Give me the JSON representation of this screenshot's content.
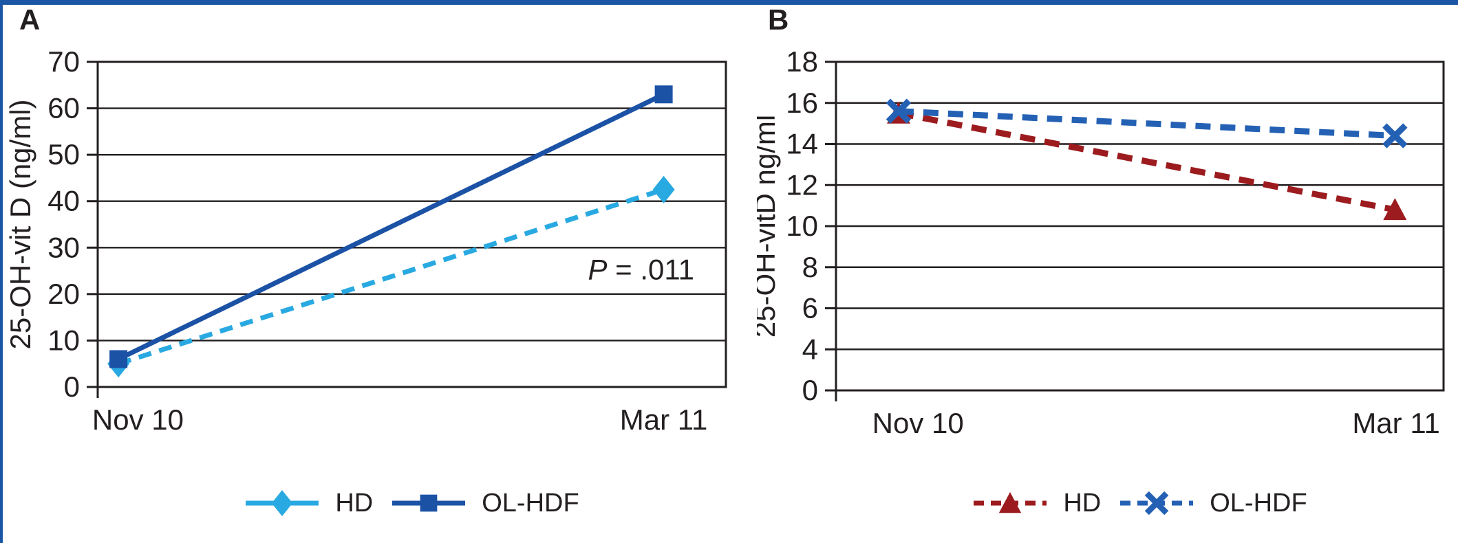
{
  "figure": {
    "border_color": "#1b55a5",
    "grid_color": "#231f20",
    "background": "#ffffff",
    "panels": [
      {
        "letter": "A"
      },
      {
        "letter": "B"
      }
    ]
  },
  "chart_data": [
    {
      "type": "line",
      "panel": "A",
      "title": "",
      "xlabel": "",
      "ylabel": "25-OH-vit D (ng/ml)",
      "categories": [
        "Nov 10",
        "Mar 11"
      ],
      "yticks": [
        70,
        60,
        50,
        40,
        30,
        20,
        10,
        0
      ],
      "ylim": [
        0,
        70
      ],
      "grid": "horizontal",
      "legend_position": "bottom",
      "series": [
        {
          "name": "HD",
          "color": "#29a9e1",
          "marker": "diamond",
          "line_style": "dashed",
          "legend_line_style": "solid",
          "values": [
            5,
            42.5
          ]
        },
        {
          "name": "OL-HDF",
          "color": "#1b52a5",
          "marker": "square",
          "line_style": "solid",
          "legend_line_style": "solid",
          "values": [
            6,
            63
          ]
        }
      ],
      "annotation": {
        "text_italic": "P",
        "text": " = .011",
        "x_frac": 0.865,
        "y_value": 25.2
      }
    },
    {
      "type": "line",
      "panel": "B",
      "title": "",
      "xlabel": "",
      "ylabel": "25-OH-vitD ng/ml",
      "categories": [
        "Nov 10",
        "Mar 11"
      ],
      "yticks": [
        18,
        16,
        14,
        12,
        10,
        8,
        6,
        4,
        0
      ],
      "ylim": [
        0,
        18
      ],
      "grid": "horizontal",
      "legend_position": "bottom",
      "series": [
        {
          "name": "HD",
          "color": "#9c1b1e",
          "marker": "triangle",
          "line_style": "dashed",
          "legend_line_style": "dashed",
          "values": [
            15.5,
            10.8
          ]
        },
        {
          "name": "OL-HDF",
          "color": "#2461b4",
          "marker": "x",
          "line_style": "dashed",
          "legend_line_style": "dashed",
          "values": [
            15.6,
            14.4
          ]
        }
      ]
    }
  ]
}
